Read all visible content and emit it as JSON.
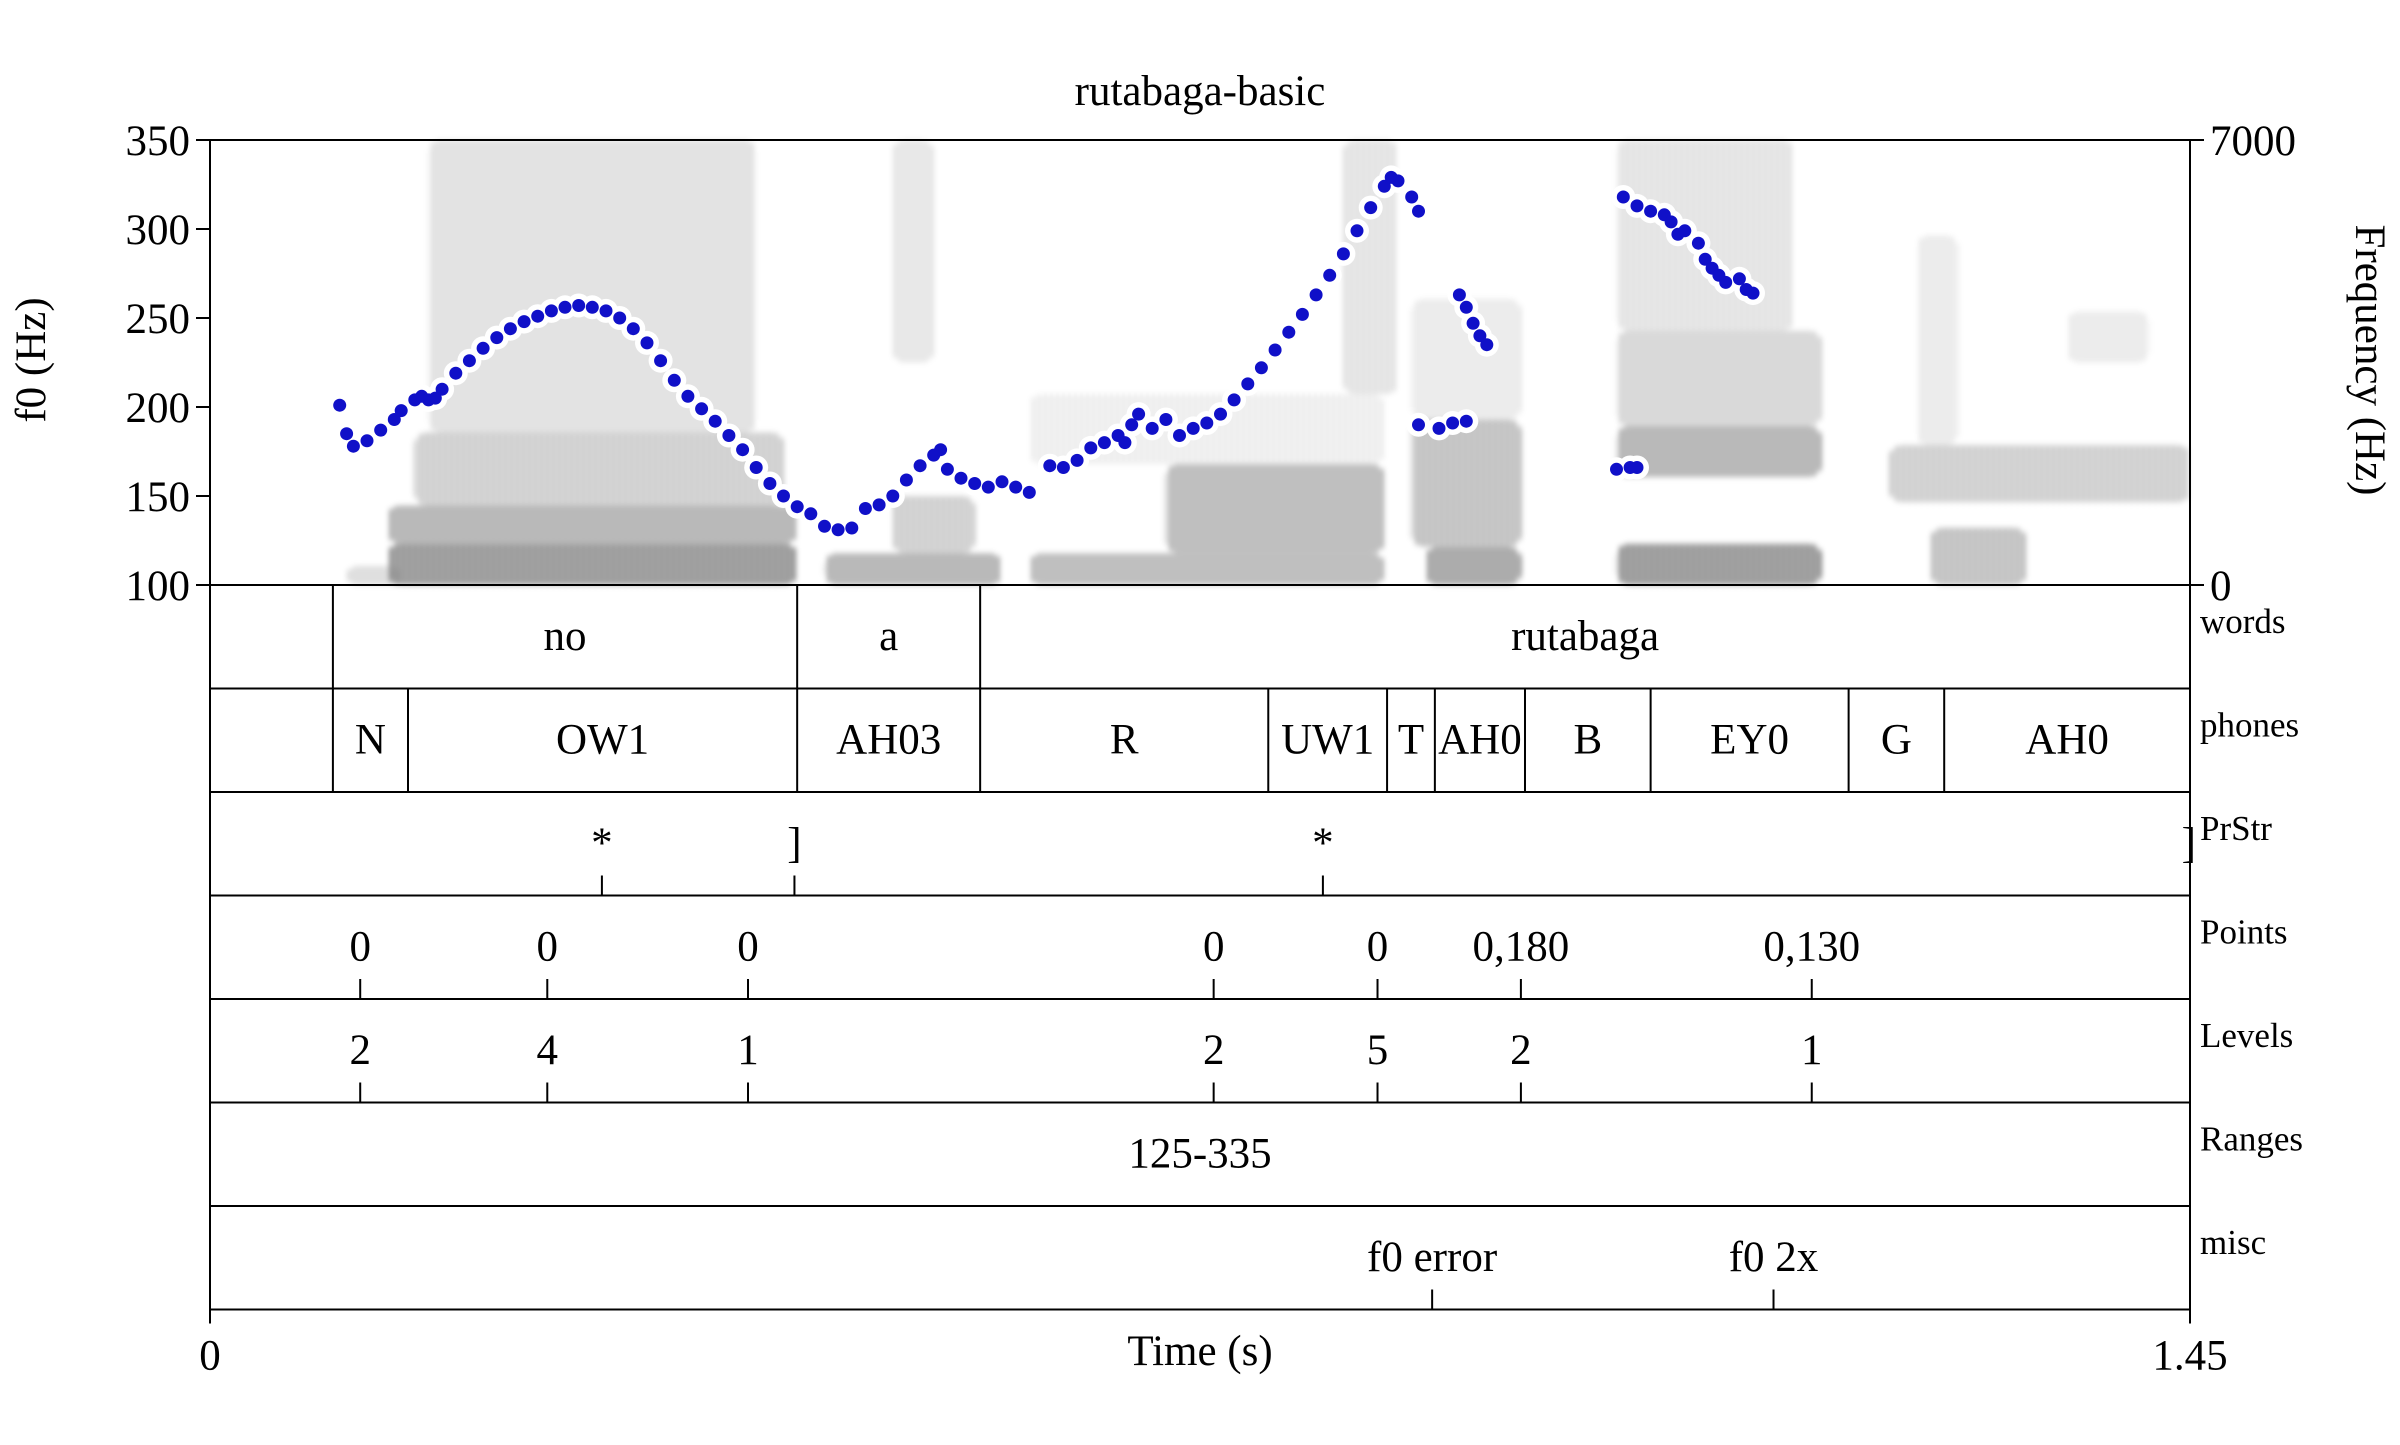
{
  "chart_data": {
    "type": "scatter",
    "title": "rutabaga-basic",
    "xlabel": "Time (s)",
    "ylabel_left": "f0 (Hz)",
    "ylabel_right": "Frequency (Hz)",
    "x_range": [
      0,
      1.45
    ],
    "x_tick_labels": [
      "0",
      "1.45"
    ],
    "f0_range": [
      100,
      350
    ],
    "f0_ticks": [
      "100",
      "150",
      "200",
      "250",
      "300",
      "350"
    ],
    "freq_range": [
      0,
      7000
    ],
    "freq_ticks": [
      "0",
      "7000"
    ],
    "grid": false,
    "colors": {
      "f0_track": "#1010c8",
      "f0_halo": "#ffffff",
      "spectrogram": "#000000"
    },
    "f0_series": [
      {
        "points": [
          [
            0.095,
            201
          ],
          [
            0.1,
            185
          ],
          [
            0.105,
            178
          ],
          [
            0.115,
            181
          ],
          [
            0.125,
            187
          ],
          [
            0.135,
            193
          ],
          [
            0.14,
            198
          ],
          [
            0.15,
            204
          ],
          [
            0.155,
            206
          ],
          [
            0.16,
            204
          ],
          [
            0.165,
            205
          ],
          [
            0.17,
            210
          ],
          [
            0.18,
            219
          ],
          [
            0.19,
            226
          ],
          [
            0.2,
            233
          ],
          [
            0.21,
            239
          ],
          [
            0.22,
            244
          ],
          [
            0.23,
            248
          ],
          [
            0.24,
            251
          ],
          [
            0.25,
            254
          ],
          [
            0.26,
            256
          ],
          [
            0.27,
            257
          ],
          [
            0.28,
            256
          ],
          [
            0.29,
            254
          ],
          [
            0.3,
            250
          ],
          [
            0.31,
            244
          ],
          [
            0.32,
            236
          ],
          [
            0.33,
            226
          ],
          [
            0.34,
            215
          ],
          [
            0.35,
            206
          ],
          [
            0.36,
            199
          ],
          [
            0.37,
            192
          ],
          [
            0.38,
            184
          ],
          [
            0.39,
            176
          ],
          [
            0.4,
            166
          ],
          [
            0.41,
            157
          ],
          [
            0.42,
            150
          ],
          [
            0.43,
            144
          ],
          [
            0.44,
            140
          ],
          [
            0.45,
            133
          ],
          [
            0.46,
            131
          ],
          [
            0.47,
            132
          ]
        ]
      },
      {
        "points": [
          [
            0.48,
            143
          ],
          [
            0.49,
            145
          ],
          [
            0.5,
            150
          ],
          [
            0.51,
            159
          ],
          [
            0.52,
            167
          ],
          [
            0.53,
            173
          ],
          [
            0.535,
            176
          ],
          [
            0.54,
            165
          ],
          [
            0.55,
            160
          ],
          [
            0.56,
            157
          ],
          [
            0.57,
            155
          ],
          [
            0.58,
            158
          ],
          [
            0.59,
            155
          ],
          [
            0.6,
            152
          ]
        ]
      },
      {
        "points": [
          [
            0.615,
            167
          ],
          [
            0.625,
            166
          ],
          [
            0.635,
            170
          ],
          [
            0.645,
            177
          ],
          [
            0.655,
            180
          ],
          [
            0.665,
            184
          ],
          [
            0.67,
            180
          ],
          [
            0.675,
            190
          ],
          [
            0.68,
            196
          ],
          [
            0.69,
            188
          ],
          [
            0.7,
            193
          ],
          [
            0.71,
            184
          ],
          [
            0.72,
            188
          ],
          [
            0.73,
            191
          ],
          [
            0.74,
            196
          ],
          [
            0.75,
            204
          ],
          [
            0.76,
            213
          ],
          [
            0.77,
            222
          ],
          [
            0.78,
            232
          ],
          [
            0.79,
            242
          ],
          [
            0.8,
            252
          ],
          [
            0.81,
            263
          ],
          [
            0.82,
            274
          ],
          [
            0.83,
            286
          ],
          [
            0.84,
            299
          ],
          [
            0.85,
            312
          ],
          [
            0.86,
            324
          ],
          [
            0.865,
            329
          ],
          [
            0.87,
            327
          ],
          [
            0.88,
            318
          ],
          [
            0.885,
            310
          ]
        ]
      },
      {
        "points": [
          [
            0.885,
            190
          ],
          [
            0.9,
            188
          ],
          [
            0.91,
            191
          ],
          [
            0.92,
            192
          ]
        ]
      },
      {
        "points": [
          [
            0.915,
            263
          ],
          [
            0.92,
            256
          ],
          [
            0.925,
            247
          ],
          [
            0.93,
            240
          ],
          [
            0.935,
            235
          ]
        ]
      },
      {
        "points": [
          [
            1.03,
            165
          ],
          [
            1.04,
            166
          ],
          [
            1.045,
            166
          ]
        ]
      },
      {
        "points": [
          [
            1.035,
            318
          ],
          [
            1.045,
            313
          ],
          [
            1.055,
            310
          ],
          [
            1.065,
            308
          ],
          [
            1.07,
            304
          ],
          [
            1.075,
            297
          ],
          [
            1.08,
            299
          ],
          [
            1.09,
            292
          ],
          [
            1.095,
            283
          ],
          [
            1.1,
            278
          ],
          [
            1.105,
            274
          ],
          [
            1.11,
            270
          ],
          [
            1.12,
            272
          ],
          [
            1.125,
            266
          ],
          [
            1.13,
            264
          ]
        ]
      }
    ],
    "tiers": [
      {
        "name": "words",
        "type": "interval",
        "boundaries": [
          0.09,
          0.43,
          0.564
        ],
        "labels": [
          {
            "text": "no",
            "start": 0.09,
            "end": 0.43
          },
          {
            "text": "a",
            "start": 0.43,
            "end": 0.564
          },
          {
            "text": "rutabaga",
            "start": 0.564,
            "end": 1.45
          }
        ]
      },
      {
        "name": "phones",
        "type": "interval",
        "boundaries": [
          0.09,
          0.145,
          0.43,
          0.564,
          0.775,
          0.862,
          0.897,
          0.963,
          1.055,
          1.2,
          1.27
        ],
        "labels": [
          {
            "text": "N",
            "start": 0.09,
            "end": 0.145
          },
          {
            "text": "OW1",
            "start": 0.145,
            "end": 0.43
          },
          {
            "text": "AH03",
            "start": 0.43,
            "end": 0.564
          },
          {
            "text": "R",
            "start": 0.564,
            "end": 0.775
          },
          {
            "text": "UW1",
            "start": 0.775,
            "end": 0.862
          },
          {
            "text": "T",
            "start": 0.862,
            "end": 0.897
          },
          {
            "text": "AH0",
            "start": 0.897,
            "end": 0.963
          },
          {
            "text": "B",
            "start": 0.963,
            "end": 1.055
          },
          {
            "text": "EY0",
            "start": 1.055,
            "end": 1.2
          },
          {
            "text": "G",
            "start": 1.2,
            "end": 1.27
          },
          {
            "text": "AH0",
            "start": 1.27,
            "end": 1.45
          }
        ]
      },
      {
        "name": "PrStr",
        "type": "point",
        "points": [
          {
            "time": 0.287,
            "label": "*",
            "side": "center"
          },
          {
            "time": 0.428,
            "label": "]",
            "side": "center"
          },
          {
            "time": 0.815,
            "label": "*",
            "side": "center"
          },
          {
            "time": 1.45,
            "label": "]",
            "side": "left"
          }
        ]
      },
      {
        "name": "Points",
        "type": "point",
        "points": [
          {
            "time": 0.11,
            "label": "0",
            "side": "center"
          },
          {
            "time": 0.247,
            "label": "0",
            "side": "center"
          },
          {
            "time": 0.394,
            "label": "0",
            "side": "center"
          },
          {
            "time": 0.735,
            "label": "0",
            "side": "center"
          },
          {
            "time": 0.855,
            "label": "0",
            "side": "center"
          },
          {
            "time": 0.96,
            "label": "0,180",
            "side": "center"
          },
          {
            "time": 1.173,
            "label": "0,130",
            "side": "center"
          }
        ]
      },
      {
        "name": "Levels",
        "type": "point",
        "points": [
          {
            "time": 0.11,
            "label": "2",
            "side": "center"
          },
          {
            "time": 0.247,
            "label": "4",
            "side": "center"
          },
          {
            "time": 0.394,
            "label": "1",
            "side": "center"
          },
          {
            "time": 0.735,
            "label": "2",
            "side": "center"
          },
          {
            "time": 0.855,
            "label": "5",
            "side": "center"
          },
          {
            "time": 0.96,
            "label": "2",
            "side": "center"
          },
          {
            "time": 1.173,
            "label": "1",
            "side": "center"
          }
        ]
      },
      {
        "name": "Ranges",
        "type": "interval",
        "boundaries": [],
        "labels": [
          {
            "text": "125-335",
            "start": 0,
            "end": 1.45
          }
        ]
      },
      {
        "name": "misc",
        "type": "point",
        "points": [
          {
            "time": 0.895,
            "label": "f0 error",
            "side": "center"
          },
          {
            "time": 1.145,
            "label": "f0 2x",
            "side": "center"
          }
        ]
      }
    ]
  }
}
